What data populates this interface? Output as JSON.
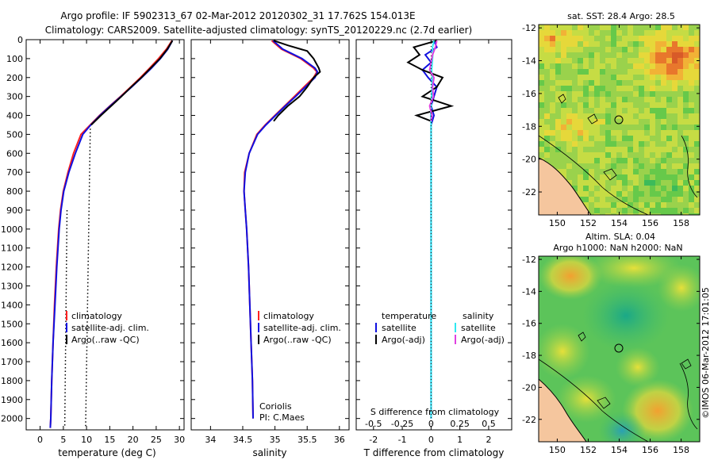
{
  "header": {
    "line1": "Argo profile: IF 5902313_67 02-Mar-2012 20120302_31 17.762S 154.013E",
    "line2": "Climatology: CARS2009. Satellite-adjusted climatology: synTS_20120229.nc (2.7d earlier)"
  },
  "colors": {
    "clim": "#ff2020",
    "sat": "#1010e0",
    "argo": "#000000",
    "sal_sat": "#30e8f0",
    "sal_argo": "#e040e0"
  },
  "chart_data": [
    {
      "type": "line",
      "title": "",
      "xlabel": "temperature (deg C)",
      "ylabel": "",
      "xlim": [
        -3,
        31
      ],
      "ylim": [
        2060,
        0
      ],
      "xticks": [
        "0",
        "5",
        "10",
        "15",
        "20",
        "25",
        "30"
      ],
      "yticks": [
        "0",
        "100",
        "200",
        "300",
        "400",
        "500",
        "600",
        "700",
        "800",
        "900",
        "1000",
        "1100",
        "1200",
        "1300",
        "1400",
        "1500",
        "1600",
        "1700",
        "1800",
        "1900",
        "2000"
      ],
      "legend": [
        "climatology",
        "satellite-adj. clim.",
        "Argo(..raw -QC)"
      ],
      "series": [
        {
          "name": "climatology",
          "depth": [
            5,
            50,
            100,
            150,
            200,
            250,
            300,
            350,
            400,
            450,
            500,
            600,
            700,
            800,
            900,
            1000,
            1200,
            1400,
            1600,
            1800,
            2000,
            2050
          ],
          "values": [
            28.4,
            27.2,
            25.5,
            23.6,
            21.6,
            19.5,
            17.3,
            15.0,
            12.8,
            10.8,
            8.8,
            7.2,
            6.0,
            5.0,
            4.4,
            4.0,
            3.5,
            3.1,
            2.8,
            2.5,
            2.3,
            2.2
          ]
        },
        {
          "name": "satellite-adj. clim.",
          "depth": [
            5,
            50,
            100,
            150,
            200,
            250,
            300,
            350,
            400,
            450,
            500,
            600,
            700,
            800,
            900,
            1000,
            1200,
            1400,
            1600,
            1800,
            2000,
            2050
          ],
          "values": [
            28.5,
            27.5,
            25.9,
            24.0,
            21.9,
            19.7,
            17.4,
            15.1,
            12.9,
            10.9,
            9.2,
            7.6,
            6.2,
            5.1,
            4.5,
            4.1,
            3.6,
            3.2,
            2.8,
            2.5,
            2.3,
            2.2
          ]
        },
        {
          "name": "Argo(..raw -QC)",
          "depth": [
            5,
            50,
            100,
            150,
            200,
            250,
            300,
            350,
            400,
            450
          ],
          "values": [
            28.5,
            27.4,
            25.8,
            23.8,
            21.8,
            19.6,
            17.5,
            15.3,
            13.1,
            11.0
          ]
        }
      ],
      "reference_dotted_lines": [
        {
          "depth": [
            470,
            2050
          ],
          "values": [
            10.8,
            9.8
          ]
        },
        {
          "depth": [
            900,
            2050
          ],
          "values": [
            5.8,
            5.3
          ]
        }
      ]
    },
    {
      "type": "line",
      "xlabel": "salinity",
      "xlim": [
        33.7,
        36.15
      ],
      "ylim": [
        2060,
        0
      ],
      "xticks": [
        "34",
        "34.5",
        "35",
        "35.5",
        "36"
      ],
      "legend": [
        "climatology",
        "satellite-adj. clim.",
        "Argo(..raw -QC)"
      ],
      "annotation": [
        "Coriolis",
        "PI: C.Maes"
      ],
      "series": [
        {
          "name": "climatology",
          "depth": [
            5,
            50,
            100,
            150,
            170,
            200,
            250,
            300,
            350,
            400,
            450,
            500,
            600,
            700,
            800,
            900,
            1000,
            1200,
            1400,
            1600,
            1800,
            2000
          ],
          "values": [
            34.95,
            35.1,
            35.4,
            35.6,
            35.65,
            35.6,
            35.45,
            35.3,
            35.15,
            35.0,
            34.85,
            34.72,
            34.6,
            34.53,
            34.52,
            34.54,
            34.56,
            34.59,
            34.61,
            34.63,
            34.65,
            34.66
          ]
        },
        {
          "name": "satellite-adj. clim.",
          "depth": [
            5,
            50,
            100,
            150,
            170,
            200,
            250,
            300,
            350,
            400,
            450,
            500,
            600,
            700,
            800,
            900,
            1000,
            1200,
            1400,
            1600,
            1800,
            2000
          ],
          "values": [
            34.97,
            35.12,
            35.42,
            35.62,
            35.66,
            35.62,
            35.47,
            35.32,
            35.16,
            35.01,
            34.86,
            34.73,
            34.6,
            34.54,
            34.52,
            34.54,
            34.56,
            34.59,
            34.61,
            34.63,
            34.65,
            34.66
          ]
        },
        {
          "name": "Argo(..raw -QC)",
          "depth": [
            5,
            30,
            60,
            100,
            150,
            170,
            200,
            250,
            300,
            350,
            400,
            430
          ],
          "values": [
            34.98,
            35.2,
            35.5,
            35.6,
            35.68,
            35.7,
            35.6,
            35.5,
            35.38,
            35.2,
            35.05,
            34.98
          ]
        }
      ]
    },
    {
      "type": "line",
      "xlabel": "T difference from climatology",
      "xlabel_top": "S difference from climatology",
      "xlim": [
        -2.6,
        2.8
      ],
      "ylim": [
        2060,
        0
      ],
      "xticks": [
        "-2",
        "-1",
        "0",
        "1",
        "2"
      ],
      "xticks_top": [
        "-0.5",
        "-0.25",
        "0",
        "0.25",
        "0.5"
      ],
      "legend_titles": [
        "temperature",
        "salinity"
      ],
      "legend": [
        "satellite",
        "Argo(-adj)",
        "satellite",
        "Argo(-adj)"
      ],
      "series": [
        {
          "name": "temperature satellite",
          "depth": [
            5,
            40,
            80,
            120,
            160,
            200,
            250,
            300,
            350,
            400,
            450,
            500,
            600,
            800,
            1000,
            1500,
            2000
          ],
          "values": [
            0.1,
            0.2,
            -0.2,
            0.0,
            -0.3,
            -0.1,
            0.2,
            0.1,
            0.0,
            0.1,
            0.0,
            0.0,
            0.0,
            0.0,
            0.0,
            0.0,
            0.0
          ]
        },
        {
          "name": "temperature Argo(-adj)",
          "depth": [
            5,
            40,
            80,
            120,
            160,
            200,
            250,
            300,
            350,
            400,
            430
          ],
          "values": [
            0.2,
            -0.6,
            -0.4,
            -0.8,
            -0.3,
            0.4,
            0.2,
            -0.3,
            0.7,
            -0.5,
            0.0
          ]
        },
        {
          "name": "salinity satellite",
          "depth": [
            5,
            40,
            80,
            120,
            160,
            200,
            250,
            300,
            350,
            400,
            450,
            500,
            600,
            800,
            1000,
            1500,
            2000
          ],
          "values": [
            0.1,
            0.05,
            0.06,
            0.04,
            0.02,
            0.04,
            0.03,
            0.02,
            0.0,
            -0.01,
            0.0,
            0.0,
            0.0,
            0.0,
            0.0,
            0.0,
            0.0
          ]
        },
        {
          "name": "salinity Argo(-adj)",
          "depth": [
            5,
            40,
            80,
            120,
            160,
            200,
            250,
            300,
            350,
            400,
            430
          ],
          "values": [
            0.2,
            0.15,
            0.05,
            0.0,
            -0.05,
            0.1,
            0.05,
            0.08,
            -0.05,
            0.03,
            0.0
          ]
        }
      ]
    },
    {
      "type": "heatmap",
      "title": "sat. SST: 28.4 Argo: 28.5",
      "xticks": [
        "150",
        "152",
        "154",
        "156",
        "158"
      ],
      "yticks": [
        "-12",
        "-14",
        "-16",
        "-18",
        "-20",
        "-22"
      ],
      "xlim": [
        148.8,
        159.2
      ],
      "ylim": [
        -23.4,
        -11.8
      ]
    },
    {
      "type": "heatmap",
      "title": "Altim. SLA: 0.04",
      "subtitle": "Argo h1000: NaN h2000: NaN",
      "xticks": [
        "150",
        "152",
        "154",
        "156",
        "158"
      ],
      "yticks": [
        "-12",
        "-14",
        "-16",
        "-18",
        "-20",
        "-22"
      ],
      "xlim": [
        148.8,
        159.2
      ],
      "ylim": [
        -23.4,
        -11.8
      ]
    }
  ],
  "side_label": "©IMOS 06-Mar-2012 17:01:05"
}
